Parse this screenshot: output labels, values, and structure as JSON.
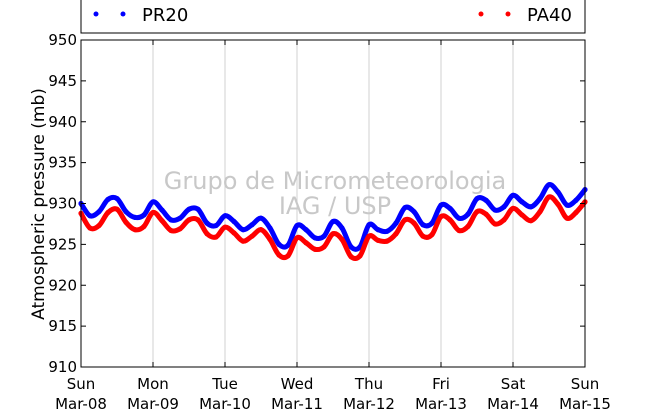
{
  "chart_data": {
    "type": "line",
    "title": "",
    "ylabel": "Atmospheric pressure (mb)",
    "xlabel": "",
    "ylim": [
      910,
      950
    ],
    "yticks": [
      910,
      915,
      920,
      925,
      930,
      935,
      940,
      945,
      950
    ],
    "xlim": [
      "2015-03-08",
      "2015-03-15"
    ],
    "xticks": [
      {
        "date": "2015-03-08",
        "day": "Sun",
        "label": "Mar-08"
      },
      {
        "date": "2015-03-09",
        "day": "Mon",
        "label": "Mar-09"
      },
      {
        "date": "2015-03-10",
        "day": "Tue",
        "label": "Mar-10"
      },
      {
        "date": "2015-03-11",
        "day": "Wed",
        "label": "Mar-11"
      },
      {
        "date": "2015-03-12",
        "day": "Thu",
        "label": "Mar-12"
      },
      {
        "date": "2015-03-13",
        "day": "Fri",
        "label": "Mar-13"
      },
      {
        "date": "2015-03-14",
        "day": "Sat",
        "label": "Mar-14"
      },
      {
        "date": "2015-03-15",
        "day": "Sun",
        "label": "Mar-15"
      }
    ],
    "grid": "vertical",
    "legend": "top",
    "watermark": [
      "Grupo de Micrometeorologia",
      "IAG / USP"
    ],
    "series": [
      {
        "name": "PR20",
        "color": "#0000ff",
        "x": [
          "2015-03-08 00:00",
          "2015-03-08 03:00",
          "2015-03-08 06:00",
          "2015-03-08 09:00",
          "2015-03-08 12:00",
          "2015-03-08 15:00",
          "2015-03-08 18:00",
          "2015-03-08 21:00",
          "2015-03-09 00:00",
          "2015-03-09 03:00",
          "2015-03-09 06:00",
          "2015-03-09 09:00",
          "2015-03-09 12:00",
          "2015-03-09 15:00",
          "2015-03-09 18:00",
          "2015-03-09 21:00",
          "2015-03-10 00:00",
          "2015-03-10 03:00",
          "2015-03-10 06:00",
          "2015-03-10 09:00",
          "2015-03-10 12:00",
          "2015-03-10 15:00",
          "2015-03-10 18:00",
          "2015-03-10 21:00",
          "2015-03-11 00:00",
          "2015-03-11 03:00",
          "2015-03-11 06:00",
          "2015-03-11 09:00",
          "2015-03-11 12:00",
          "2015-03-11 15:00",
          "2015-03-11 18:00",
          "2015-03-11 21:00",
          "2015-03-12 00:00",
          "2015-03-12 03:00",
          "2015-03-12 06:00",
          "2015-03-12 09:00",
          "2015-03-12 12:00",
          "2015-03-12 15:00",
          "2015-03-12 18:00",
          "2015-03-12 21:00",
          "2015-03-13 00:00",
          "2015-03-13 03:00",
          "2015-03-13 06:00",
          "2015-03-13 09:00",
          "2015-03-13 12:00",
          "2015-03-13 15:00",
          "2015-03-13 18:00",
          "2015-03-13 21:00",
          "2015-03-14 00:00",
          "2015-03-14 03:00",
          "2015-03-14 06:00",
          "2015-03-14 09:00",
          "2015-03-14 12:00",
          "2015-03-14 15:00",
          "2015-03-14 18:00",
          "2015-03-14 21:00",
          "2015-03-15 00:00"
        ],
        "values": [
          930.0,
          928.5,
          929.0,
          930.5,
          930.6,
          929.0,
          928.3,
          928.6,
          930.2,
          929.2,
          928.0,
          928.2,
          929.3,
          929.3,
          927.6,
          927.3,
          928.5,
          927.8,
          926.8,
          927.4,
          928.2,
          927.0,
          925.0,
          924.9,
          927.3,
          926.8,
          925.8,
          926.0,
          927.8,
          927.0,
          924.7,
          924.7,
          927.4,
          926.8,
          926.6,
          927.6,
          929.5,
          929.0,
          927.4,
          927.6,
          929.8,
          929.4,
          928.2,
          928.7,
          930.6,
          930.4,
          929.2,
          929.6,
          931.0,
          930.2,
          929.6,
          930.6,
          932.3,
          931.4,
          929.8,
          930.4,
          931.7
        ]
      },
      {
        "name": "PA40",
        "color": "#ff0000",
        "x": [
          "2015-03-08 00:00",
          "2015-03-08 03:00",
          "2015-03-08 06:00",
          "2015-03-08 09:00",
          "2015-03-08 12:00",
          "2015-03-08 15:00",
          "2015-03-08 18:00",
          "2015-03-08 21:00",
          "2015-03-09 00:00",
          "2015-03-09 03:00",
          "2015-03-09 06:00",
          "2015-03-09 09:00",
          "2015-03-09 12:00",
          "2015-03-09 15:00",
          "2015-03-09 18:00",
          "2015-03-09 21:00",
          "2015-03-10 00:00",
          "2015-03-10 03:00",
          "2015-03-10 06:00",
          "2015-03-10 09:00",
          "2015-03-10 12:00",
          "2015-03-10 15:00",
          "2015-03-10 18:00",
          "2015-03-10 21:00",
          "2015-03-11 00:00",
          "2015-03-11 03:00",
          "2015-03-11 06:00",
          "2015-03-11 09:00",
          "2015-03-11 12:00",
          "2015-03-11 15:00",
          "2015-03-11 18:00",
          "2015-03-11 21:00",
          "2015-03-12 00:00",
          "2015-03-12 03:00",
          "2015-03-12 06:00",
          "2015-03-12 09:00",
          "2015-03-12 12:00",
          "2015-03-12 15:00",
          "2015-03-12 18:00",
          "2015-03-12 21:00",
          "2015-03-13 00:00",
          "2015-03-13 03:00",
          "2015-03-13 06:00",
          "2015-03-13 09:00",
          "2015-03-13 12:00",
          "2015-03-13 15:00",
          "2015-03-13 18:00",
          "2015-03-13 21:00",
          "2015-03-14 00:00",
          "2015-03-14 03:00",
          "2015-03-14 06:00",
          "2015-03-14 09:00",
          "2015-03-14 12:00",
          "2015-03-14 15:00",
          "2015-03-14 18:00",
          "2015-03-14 21:00",
          "2015-03-15 00:00"
        ],
        "values": [
          928.8,
          927.0,
          927.3,
          928.9,
          929.3,
          927.7,
          926.8,
          927.2,
          928.9,
          927.9,
          926.7,
          926.9,
          928.0,
          928.0,
          926.3,
          925.9,
          927.1,
          926.4,
          925.4,
          926.0,
          926.8,
          925.6,
          923.7,
          923.6,
          925.8,
          925.2,
          924.4,
          924.7,
          926.3,
          925.6,
          923.5,
          923.6,
          926.0,
          925.5,
          925.4,
          926.3,
          928.0,
          927.6,
          926.0,
          926.2,
          928.4,
          928.0,
          926.7,
          927.2,
          929.0,
          928.7,
          927.5,
          928.0,
          929.4,
          928.6,
          927.9,
          929.0,
          930.8,
          929.9,
          928.2,
          928.9,
          930.2
        ]
      }
    ]
  }
}
